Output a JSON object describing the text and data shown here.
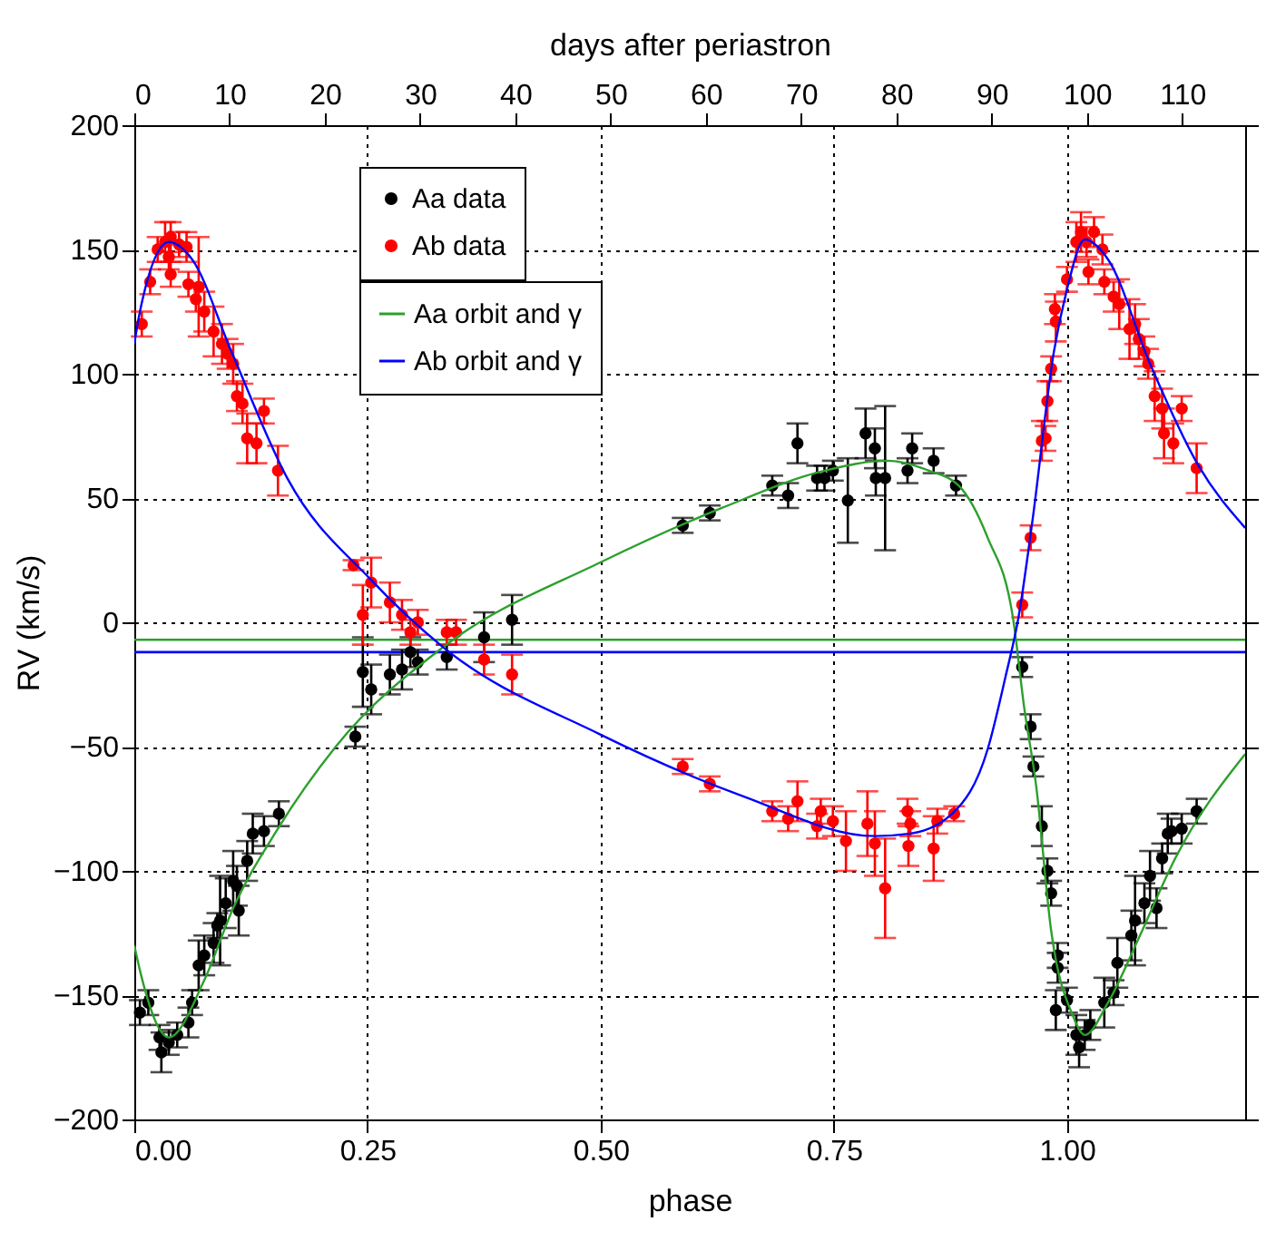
{
  "chart_data": {
    "type": "scatter",
    "xlabel": "phase",
    "ylabel": "RV (km/s)",
    "x2label": "days after periastron",
    "xlim": [
      0,
      1.191
    ],
    "xticks": [
      {
        "value": 0,
        "label": "0.00"
      },
      {
        "value": 0.25,
        "label": "0.25"
      },
      {
        "value": 0.5,
        "label": "0.50"
      },
      {
        "value": 0.75,
        "label": "0.75"
      },
      {
        "value": 1,
        "label": "1.00"
      }
    ],
    "x2lim": [
      0,
      116.6
    ],
    "x2ticks": [
      0,
      10,
      20,
      30,
      40,
      50,
      60,
      70,
      80,
      90,
      100,
      110
    ],
    "ylim": [
      -200,
      200
    ],
    "yticks": [
      -200,
      -150,
      -100,
      -50,
      0,
      50,
      100,
      150,
      200
    ],
    "grid": true,
    "legend": "top left",
    "marker": "circle",
    "line_style": "solid",
    "ref_lines": [
      {
        "axis": "y",
        "value": -7,
        "color": "#2ca02c"
      },
      {
        "axis": "y",
        "value": -12,
        "color": "#0000ff"
      }
    ],
    "series": [
      {
        "name": "Aa data",
        "color": "#000000",
        "x": [
          0.006,
          0.015,
          0.027,
          0.029,
          0.037,
          0.046,
          0.058,
          0.062,
          0.069,
          0.075,
          0.085,
          0.089,
          0.092,
          0.098,
          0.106,
          0.11,
          0.112,
          0.121,
          0.127,
          0.139,
          0.155,
          0.237,
          0.245,
          0.254,
          0.274,
          0.287,
          0.296,
          0.304,
          0.335,
          0.375,
          0.405,
          0.588,
          0.617,
          0.684,
          0.701,
          0.711,
          0.732,
          0.74,
          0.749,
          0.765,
          0.784,
          0.794,
          0.795,
          0.805,
          0.829,
          0.834,
          0.857,
          0.881,
          0.952,
          0.961,
          0.964,
          0.973,
          0.979,
          0.983,
          0.988,
          0.99,
          0.99,
          1.0,
          1.01,
          1.013,
          1.019,
          1.025,
          1.04,
          1.05,
          1.054,
          1.069,
          1.073,
          1.083,
          1.089,
          1.096,
          1.102,
          1.108,
          1.112,
          1.123,
          1.139
        ],
        "values": [
          -157,
          -153,
          -167,
          -173,
          -169,
          -166,
          -161,
          -153,
          -138,
          -134,
          -129,
          -122,
          -120,
          -113,
          -104,
          -106,
          -116,
          -96,
          -85,
          -84,
          -77,
          -46,
          -20,
          -27,
          -21,
          -19,
          -12,
          -16,
          -14,
          -6,
          1,
          39,
          44,
          55,
          51,
          72,
          58,
          58,
          61,
          49,
          76,
          70,
          58,
          58,
          61,
          70,
          65,
          55,
          -18,
          -42,
          -58,
          -82,
          -100,
          -109,
          -156,
          -134,
          -139,
          -152,
          -166,
          -171,
          -166,
          -162,
          -153,
          -149,
          -137,
          -126,
          -120,
          -113,
          -102,
          -115,
          -95,
          -85,
          -84,
          -83,
          -76
        ],
        "errors": [
          5,
          5,
          5,
          8,
          5,
          5,
          6,
          5,
          10,
          8,
          8,
          5,
          18,
          10,
          12,
          8,
          10,
          8,
          8,
          6,
          5,
          4,
          14,
          10,
          8,
          8,
          6,
          5,
          5,
          10,
          10,
          3,
          3,
          4,
          5,
          8,
          5,
          5,
          4,
          17,
          10,
          8,
          7,
          29,
          5,
          6,
          5,
          4,
          4,
          5,
          4,
          8,
          5,
          5,
          8,
          5,
          6,
          5,
          8,
          8,
          6,
          6,
          10,
          5,
          10,
          10,
          18,
          8,
          10,
          8,
          6,
          8,
          5,
          6,
          5
        ]
      },
      {
        "name": "Ab data",
        "color": "#ff0000",
        "x": [
          0.008,
          0.017,
          0.025,
          0.033,
          0.039,
          0.037,
          0.039,
          0.048,
          0.056,
          0.058,
          0.066,
          0.069,
          0.075,
          0.085,
          0.094,
          0.1,
          0.106,
          0.11,
          0.116,
          0.121,
          0.131,
          0.139,
          0.154,
          0.235,
          0.245,
          0.254,
          0.274,
          0.287,
          0.296,
          0.304,
          0.335,
          0.345,
          0.375,
          0.405,
          0.588,
          0.617,
          0.684,
          0.701,
          0.711,
          0.732,
          0.736,
          0.749,
          0.763,
          0.786,
          0.794,
          0.805,
          0.829,
          0.832,
          0.83,
          0.857,
          0.861,
          0.879,
          0.952,
          0.961,
          0.973,
          0.977,
          0.979,
          0.983,
          0.988,
          0.987,
          1.0,
          1.01,
          1.015,
          1.021,
          1.023,
          1.029,
          1.038,
          1.04,
          1.05,
          1.056,
          1.067,
          1.073,
          1.077,
          1.083,
          1.087,
          1.094,
          1.102,
          1.104,
          1.114,
          1.123,
          1.139
        ],
        "values": [
          120,
          137,
          150,
          153,
          155,
          147,
          140,
          152,
          151,
          136,
          130,
          135,
          125,
          117,
          112,
          108,
          104,
          91,
          88,
          74,
          72,
          85,
          61,
          23,
          3,
          16,
          8,
          3,
          -4,
          0,
          -4,
          -4,
          -15,
          -21,
          -58,
          -65,
          -76,
          -79,
          -72,
          -82,
          -76,
          -80,
          -88,
          -81,
          -89,
          -107,
          -76,
          -81,
          -90,
          -91,
          -80,
          -77,
          7,
          34,
          73,
          74,
          89,
          102,
          121,
          126,
          138,
          153,
          157,
          153,
          141,
          157,
          150,
          137,
          131,
          128,
          118,
          120,
          114,
          109,
          104,
          91,
          86,
          76,
          72,
          86,
          62
        ],
        "errors": [
          5,
          5,
          5,
          8,
          6,
          5,
          5,
          5,
          6,
          5,
          5,
          20,
          8,
          10,
          8,
          6,
          8,
          6,
          8,
          10,
          8,
          5,
          10,
          2,
          12,
          10,
          8,
          6,
          5,
          5,
          5,
          5,
          6,
          8,
          3,
          3,
          4,
          5,
          8,
          5,
          5,
          6,
          12,
          13,
          13,
          20,
          5,
          5,
          8,
          13,
          5,
          3,
          5,
          5,
          8,
          5,
          8,
          5,
          8,
          6,
          5,
          8,
          8,
          6,
          5,
          6,
          6,
          5,
          6,
          10,
          12,
          8,
          8,
          6,
          6,
          10,
          8,
          10,
          8,
          5,
          10
        ]
      },
      {
        "name": "Aa orbit and γ",
        "color": "#2ca02c",
        "type": "line",
        "marker": "none",
        "x": [
          0,
          0.006,
          0.037,
          0.075,
          0.106,
          0.154,
          0.216,
          0.331,
          0.499,
          0.63,
          0.74,
          0.807,
          0.852,
          0.884,
          0.915,
          0.942,
          0.954,
          0.967,
          0.983,
          1.006,
          1.019,
          1.044,
          1.077,
          1.116,
          1.191
        ],
        "values": [
          -130,
          -140,
          -167,
          -144,
          -115,
          -83,
          -50,
          -10,
          24,
          46,
          61,
          65,
          61,
          55,
          34,
          2,
          -34,
          -66,
          -124,
          -158,
          -166,
          -153,
          -127,
          -95,
          -53
        ]
      },
      {
        "name": "Ab orbit and γ",
        "color": "#0000ff",
        "type": "line",
        "marker": "none",
        "x": [
          0,
          0.006,
          0.037,
          0.062,
          0.104,
          0.164,
          0.254,
          0.331,
          0.499,
          0.653,
          0.794,
          0.832,
          0.877,
          0.915,
          0.934,
          0.948,
          0.963,
          0.986,
          1.0,
          1.019,
          1.044,
          1.089,
          1.141,
          1.191
        ],
        "values": [
          112,
          125,
          153,
          146,
          109,
          58,
          17,
          -10,
          -45,
          -70,
          -86,
          -85,
          -77,
          -51,
          -22,
          2,
          41,
          109,
          134,
          154,
          146,
          104,
          63,
          38
        ]
      }
    ]
  }
}
